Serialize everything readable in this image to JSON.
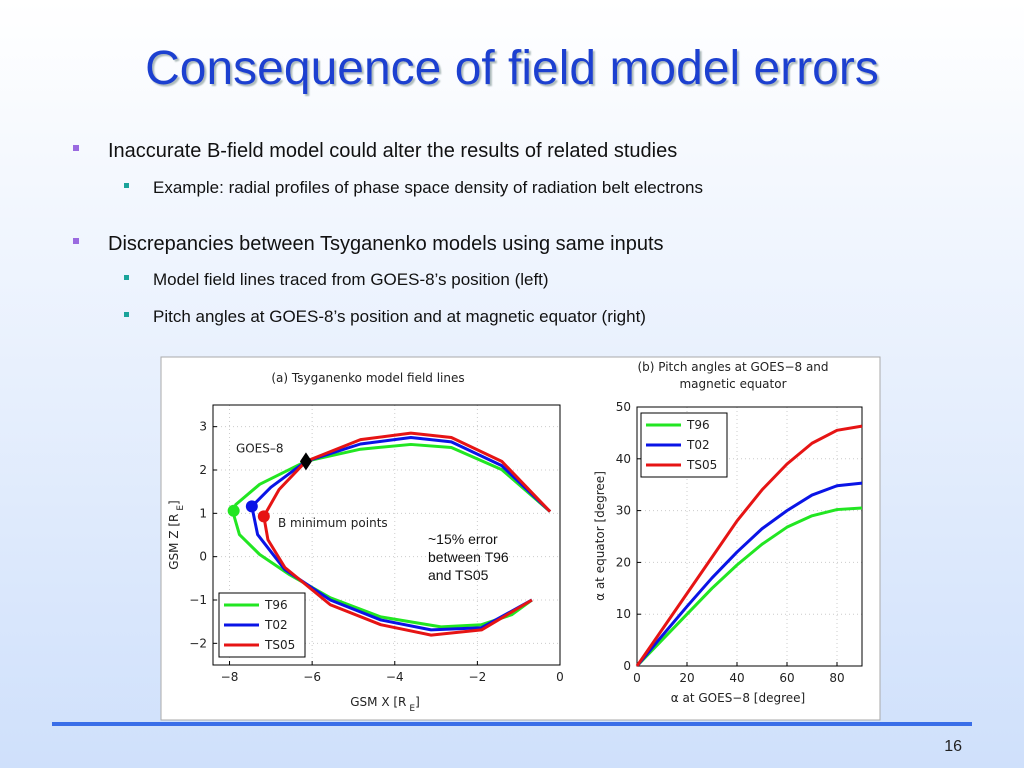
{
  "title": "Consequence of field model errors",
  "bullets": [
    {
      "text": "Inaccurate B-field model could alter the results of related studies",
      "sub": [
        "Example: radial profiles of phase space density of radiation belt electrons"
      ]
    },
    {
      "text": "Discrepancies between Tsyganenko models using same inputs",
      "sub": [
        "Model field lines traced from GOES-8’s position (left)",
        "Pitch angles at GOES-8’s position and at magnetic equator (right)"
      ]
    }
  ],
  "callout": [
    "~15% error",
    "between T96",
    "and TS05"
  ],
  "page_number": "16",
  "chart_data": [
    {
      "type": "line",
      "title": [
        "(a) Tsyganenko model field lines"
      ],
      "xlabel": [
        "GSM X [R",
        "E",
        "]"
      ],
      "ylabel": [
        "GSM Z [R",
        "E",
        "]"
      ],
      "xlim": [
        -8.4,
        0
      ],
      "ylim": [
        -2.5,
        3.5
      ],
      "xticks": [
        {
          "value": -8,
          "label": "−8"
        },
        {
          "value": -6,
          "label": "−6"
        },
        {
          "value": -4,
          "label": "−4"
        },
        {
          "value": -2,
          "label": "−2"
        },
        0
      ],
      "yticks": [
        {
          "value": -2,
          "label": "−2"
        },
        {
          "value": -1,
          "label": "−1"
        },
        0,
        1,
        2,
        3
      ],
      "grid": true,
      "legend": "lower left",
      "goes_point": {
        "label": "GOES–8",
        "x": -6.15,
        "y": 2.2
      },
      "min_points_label": "B minimum points",
      "series": [
        {
          "name": "T96",
          "color": "#22e622",
          "x": [
            -0.24,
            -1.41,
            -2.63,
            -3.61,
            -4.83,
            -6.15,
            -7.27,
            -7.85,
            -7.9,
            -7.76,
            -7.27,
            -6.54,
            -5.56,
            -4.34,
            -2.88,
            -1.9,
            -1.17,
            -0.68
          ],
          "values": [
            1.04,
            2.01,
            2.52,
            2.59,
            2.48,
            2.2,
            1.67,
            1.2,
            0.97,
            0.51,
            0.05,
            -0.42,
            -0.95,
            -1.39,
            -1.62,
            -1.57,
            -1.34,
            -1.0
          ],
          "min_point": {
            "x": -7.9,
            "y": 1.06
          }
        },
        {
          "name": "T02",
          "color": "#0a14e6",
          "x": [
            -0.24,
            -1.41,
            -2.63,
            -3.61,
            -4.83,
            -6.15,
            -7.0,
            -7.46,
            -7.32,
            -6.66,
            -5.56,
            -4.34,
            -3.12,
            -1.9,
            -0.68
          ],
          "values": [
            1.04,
            2.1,
            2.65,
            2.75,
            2.6,
            2.2,
            1.6,
            1.16,
            0.51,
            -0.3,
            -1.0,
            -1.46,
            -1.69,
            -1.64,
            -1.0
          ],
          "min_point": {
            "x": -7.46,
            "y": 1.16
          }
        },
        {
          "name": "TS05",
          "color": "#e61414",
          "x": [
            -0.24,
            -1.41,
            -2.63,
            -3.61,
            -4.83,
            -6.15,
            -6.8,
            -7.17,
            -7.07,
            -6.66,
            -5.56,
            -4.34,
            -3.12,
            -1.9,
            -0.68
          ],
          "values": [
            1.04,
            2.2,
            2.75,
            2.85,
            2.7,
            2.2,
            1.55,
            0.93,
            0.39,
            -0.25,
            -1.11,
            -1.57,
            -1.81,
            -1.69,
            -1.0
          ],
          "min_point": {
            "x": -7.17,
            "y": 0.93
          }
        }
      ]
    },
    {
      "type": "line",
      "title": [
        "(b) Pitch angles at GOES−8 and",
        "magnetic equator"
      ],
      "xlabel": [
        "α at GOES−8 [degree]"
      ],
      "ylabel": [
        "α at equator [degree]"
      ],
      "xlim": [
        0,
        90
      ],
      "ylim": [
        0,
        50
      ],
      "xticks": [
        0,
        20,
        40,
        60,
        80
      ],
      "yticks": [
        0,
        10,
        20,
        30,
        40,
        50
      ],
      "grid": true,
      "legend": "upper left",
      "series": [
        {
          "name": "T96",
          "color": "#22e622",
          "x": [
            0,
            10,
            20,
            30,
            40,
            50,
            60,
            70,
            80,
            90
          ],
          "values": [
            0,
            5,
            10,
            15,
            19.5,
            23.5,
            26.8,
            29,
            30.2,
            30.5
          ]
        },
        {
          "name": "T02",
          "color": "#0a14e6",
          "x": [
            0,
            10,
            20,
            30,
            40,
            50,
            60,
            70,
            80,
            90
          ],
          "values": [
            0,
            5.8,
            11.5,
            17,
            22,
            26.5,
            30,
            33,
            34.8,
            35.3
          ]
        },
        {
          "name": "TS05",
          "color": "#e61414",
          "x": [
            0,
            10,
            20,
            30,
            40,
            50,
            60,
            70,
            80,
            90
          ],
          "values": [
            0,
            7,
            14,
            21,
            28,
            34,
            39,
            43,
            45.5,
            46.3
          ]
        }
      ]
    }
  ]
}
